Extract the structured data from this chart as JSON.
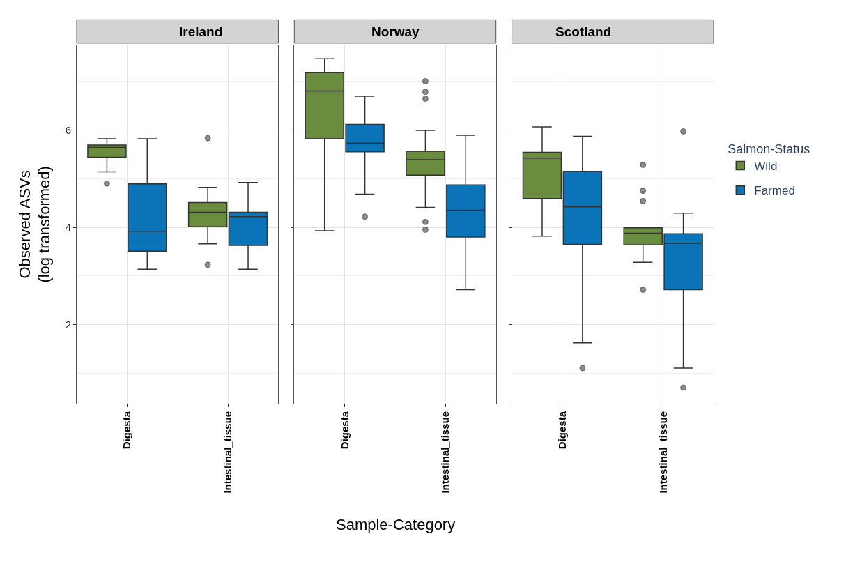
{
  "chart_data": [
    {
      "type": "box",
      "title": "Ireland",
      "legend_title": "Salmon-Status",
      "legend": "right",
      "ylabel": "Observed ASVs\n(log transformed)",
      "categories": [
        "Digesta",
        "Intestinal_tissue"
      ],
      "ylim": [
        0.38,
        7.74
      ],
      "yticks": [
        2,
        4,
        6
      ],
      "grid": true,
      "marker": "circle",
      "series": [
        {
          "name": "Wild",
          "color": "#6a8c3f",
          "boxes": [
            {
              "low": 5.14,
              "q1": 5.44,
              "median": 5.64,
              "q3": 5.69,
              "high": 5.82,
              "outliers": [
                4.9
              ]
            },
            {
              "low": 3.66,
              "q1": 4.01,
              "median": 4.31,
              "q3": 4.51,
              "high": 4.82,
              "outliers": [
                5.83,
                3.23
              ]
            }
          ]
        },
        {
          "name": "Farmed",
          "color": "#0b73b8",
          "boxes": [
            {
              "low": 3.14,
              "q1": 3.51,
              "median": 3.92,
              "q3": 4.89,
              "high": 5.82
            },
            {
              "low": 3.14,
              "q1": 3.63,
              "median": 4.22,
              "q3": 4.31,
              "high": 4.92
            }
          ]
        }
      ]
    },
    {
      "type": "box",
      "title": "Norway",
      "xlabel": "Sample-Category",
      "categories": [
        "Digesta",
        "Intestinal_tissue"
      ],
      "ylim": [
        0.38,
        7.74
      ],
      "yticks": [
        2,
        4,
        6
      ],
      "grid": true,
      "marker": "circle",
      "tick_labels": "x",
      "series": [
        {
          "name": "Wild",
          "color": "#6a8c3f",
          "boxes": [
            {
              "low": 3.93,
              "q1": 5.82,
              "median": 6.8,
              "q3": 7.18,
              "high": 7.46
            },
            {
              "low": 4.41,
              "q1": 5.07,
              "median": 5.39,
              "q3": 5.56,
              "high": 5.99,
              "outliers": [
                7.0,
                6.78,
                6.64,
                4.11,
                3.95
              ]
            }
          ]
        },
        {
          "name": "Farmed",
          "color": "#0b73b8",
          "boxes": [
            {
              "low": 4.68,
              "q1": 5.55,
              "median": 5.73,
              "q3": 6.11,
              "high": 6.69,
              "outliers": [
                4.22
              ]
            },
            {
              "low": 2.72,
              "q1": 3.8,
              "median": 4.35,
              "q3": 4.87,
              "high": 5.89
            }
          ]
        }
      ]
    },
    {
      "type": "box",
      "title": "Scotland",
      "categories": [
        "Digesta",
        "Intestinal_tissue"
      ],
      "ylim": [
        0.38,
        7.74
      ],
      "yticks": [
        2,
        4,
        6
      ],
      "grid": true,
      "marker": "circle",
      "tick_labels": "x",
      "series": [
        {
          "name": "Wild",
          "color": "#6a8c3f",
          "boxes": [
            {
              "low": 3.82,
              "q1": 4.59,
              "median": 5.42,
              "q3": 5.54,
              "high": 6.06
            },
            {
              "low": 3.28,
              "q1": 3.64,
              "median": 3.88,
              "q3": 3.99,
              "high": 3.99,
              "outliers": [
                5.28,
                4.75,
                4.54,
                2.72
              ]
            }
          ]
        },
        {
          "name": "Farmed",
          "color": "#0b73b8",
          "boxes": [
            {
              "low": 1.63,
              "q1": 3.65,
              "median": 4.42,
              "q3": 5.15,
              "high": 5.87,
              "outliers": [
                1.11
              ]
            },
            {
              "low": 1.11,
              "q1": 2.72,
              "median": 3.67,
              "q3": 3.87,
              "high": 4.29,
              "outliers": [
                5.97,
                0.71
              ]
            }
          ]
        }
      ]
    }
  ]
}
